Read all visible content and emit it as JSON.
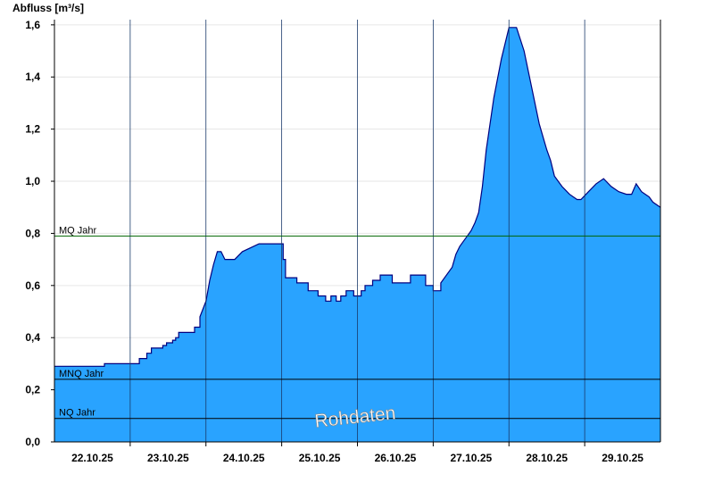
{
  "chart_data": {
    "type": "area",
    "ylabel": "Abfluss [m³/s]",
    "ylim": [
      0,
      1.62
    ],
    "yticks": [
      0.0,
      0.2,
      0.4,
      0.6,
      0.8,
      1.0,
      1.2,
      1.4,
      1.6
    ],
    "ytick_labels": [
      "0,0",
      "0,2",
      "0,4",
      "0,6",
      "0,8",
      "1,0",
      "1,2",
      "1,4",
      "1,6"
    ],
    "xlim": [
      0,
      8.0
    ],
    "x_unit": "days since start of 22.10.25",
    "day_boundaries": [
      1,
      2,
      3,
      4,
      5,
      6,
      7
    ],
    "xtick_positions": [
      0.5,
      1.5,
      2.5,
      3.5,
      4.5,
      5.5,
      6.5,
      7.5
    ],
    "xtick_labels": [
      "22.10.25",
      "23.10.25",
      "24.10.25",
      "25.10.25",
      "26.10.25",
      "27.10.25",
      "28.10.25",
      "29.10.25"
    ],
    "grid": true,
    "series": [
      {
        "name": "Rohdaten",
        "color": "#29a3ff",
        "line_color": "#00007f",
        "x": [
          0,
          0.66,
          0.66,
          1.12,
          1.12,
          1.22,
          1.22,
          1.28,
          1.28,
          1.43,
          1.43,
          1.48,
          1.48,
          1.56,
          1.56,
          1.6,
          1.6,
          1.64,
          1.64,
          1.85,
          1.85,
          1.92,
          1.92,
          2.0,
          2.05,
          2.1,
          2.15,
          2.2,
          2.25,
          2.3,
          2.38,
          2.48,
          2.48,
          2.7,
          2.7,
          2.82,
          2.82,
          3.02,
          3.02,
          3.05,
          3.05,
          3.2,
          3.2,
          3.35,
          3.35,
          3.48,
          3.48,
          3.58,
          3.58,
          3.65,
          3.65,
          3.72,
          3.72,
          3.78,
          3.78,
          3.85,
          3.85,
          3.95,
          3.95,
          4.05,
          4.05,
          4.1,
          4.1,
          4.2,
          4.2,
          4.3,
          4.3,
          4.46,
          4.46,
          4.7,
          4.7,
          4.9,
          4.9,
          5.0,
          5.0,
          5.1,
          5.1,
          5.25,
          5.3,
          5.35,
          5.4,
          5.45,
          5.5,
          5.55,
          5.6,
          5.65,
          5.7,
          5.8,
          5.9,
          6.0,
          6.1,
          6.2,
          6.3,
          6.4,
          6.5,
          6.55,
          6.6,
          6.7,
          6.8,
          6.9,
          6.95,
          7.05,
          7.15,
          7.25,
          7.35,
          7.45,
          7.55,
          7.62,
          7.68,
          7.75,
          7.8,
          7.85,
          7.9,
          8.0
        ],
        "y": [
          0.29,
          0.29,
          0.3,
          0.3,
          0.32,
          0.32,
          0.34,
          0.34,
          0.36,
          0.36,
          0.37,
          0.37,
          0.38,
          0.38,
          0.39,
          0.39,
          0.4,
          0.4,
          0.42,
          0.42,
          0.44,
          0.44,
          0.48,
          0.54,
          0.62,
          0.68,
          0.73,
          0.73,
          0.7,
          0.7,
          0.7,
          0.73,
          0.73,
          0.76,
          0.76,
          0.76,
          0.76,
          0.76,
          0.7,
          0.7,
          0.63,
          0.63,
          0.61,
          0.61,
          0.58,
          0.58,
          0.56,
          0.56,
          0.54,
          0.54,
          0.56,
          0.56,
          0.54,
          0.54,
          0.56,
          0.56,
          0.58,
          0.58,
          0.56,
          0.56,
          0.58,
          0.58,
          0.6,
          0.6,
          0.62,
          0.62,
          0.64,
          0.64,
          0.61,
          0.61,
          0.64,
          0.64,
          0.6,
          0.6,
          0.58,
          0.58,
          0.61,
          0.67,
          0.72,
          0.75,
          0.77,
          0.79,
          0.81,
          0.84,
          0.88,
          0.98,
          1.12,
          1.32,
          1.47,
          1.59,
          1.59,
          1.5,
          1.36,
          1.22,
          1.12,
          1.08,
          1.02,
          0.98,
          0.95,
          0.93,
          0.93,
          0.96,
          0.99,
          1.01,
          0.98,
          0.96,
          0.95,
          0.95,
          0.99,
          0.96,
          0.95,
          0.94,
          0.92,
          0.9
        ]
      }
    ],
    "reference_lines": [
      {
        "label": "MQ Jahr",
        "value": 0.79,
        "color": "#006400"
      },
      {
        "label": "MNQ Jahr",
        "value": 0.24,
        "color": "#000000"
      },
      {
        "label": "NQ Jahr",
        "value": 0.09,
        "color": "#000000"
      }
    ],
    "watermark": "Rohdaten"
  }
}
